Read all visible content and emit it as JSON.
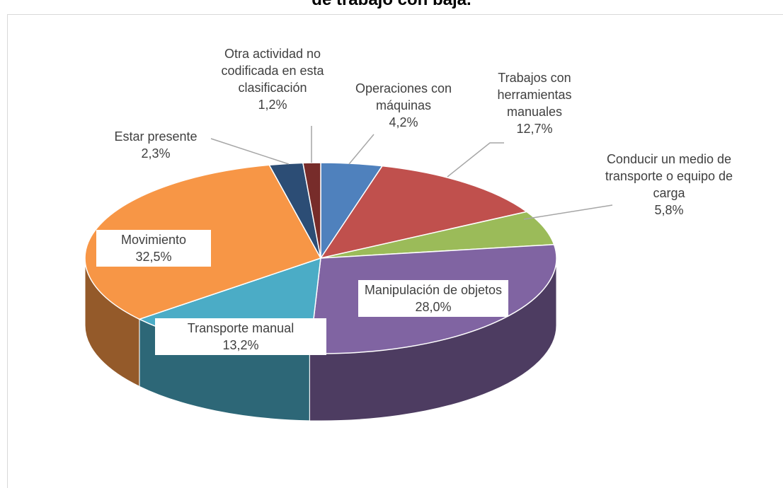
{
  "chart_data": {
    "type": "pie3d",
    "title": "de trabajo con baja.",
    "categories": [
      "Operaciones con máquinas",
      "Trabajos con herramientas manuales",
      "Conducir un medio de transporte o equipo de carga",
      "Manipulación de objetos",
      "Transporte manual",
      "Movimiento",
      "Estar presente",
      "Otra actividad no codificada en esta clasificación"
    ],
    "values": [
      4.2,
      12.7,
      5.8,
      28.0,
      13.2,
      32.5,
      2.3,
      1.2
    ],
    "value_labels": [
      "4,2%",
      "12,7%",
      "5,8%",
      "28,0%",
      "13,2%",
      "32,5%",
      "2,3%",
      "1,2%"
    ],
    "colors": [
      "#4f81bd",
      "#c0504d",
      "#9bbb59",
      "#8064a2",
      "#4bacc6",
      "#f79646",
      "#2c4d75",
      "#772c2a"
    ]
  }
}
